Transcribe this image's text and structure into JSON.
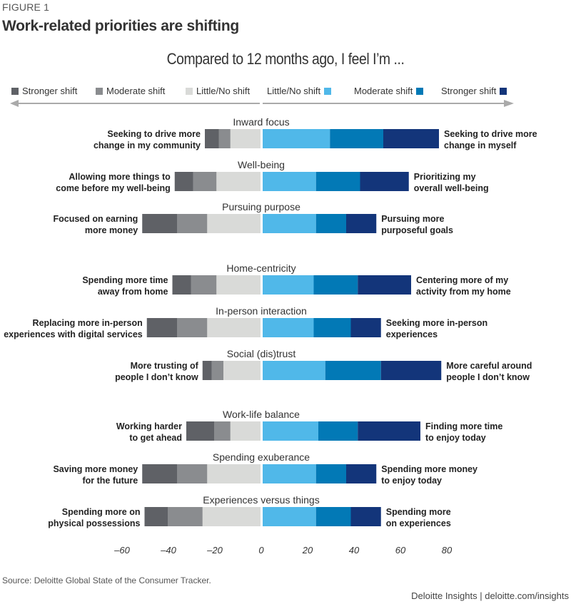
{
  "figure_label": "FIGURE 1",
  "title": "Work-related priorities are shifting",
  "source": "Source: Deloitte Global State of the Consumer Tracker.",
  "footer": "Deloitte Insights | deloitte.com/insights",
  "colors": {
    "left_stronger": "#5f6166",
    "left_moderate": "#8a8c8f",
    "left_little": "#d9dad8",
    "right_little": "#50b8e9",
    "right_moderate": "#0279b6",
    "right_stronger": "#13357a",
    "arrow": "#aaaaaa"
  },
  "legend": {
    "left": [
      "Stronger shift",
      "Moderate shift",
      "Little/No shift"
    ],
    "right": [
      "Little/No shift",
      "Moderate shift",
      "Stronger shift"
    ]
  },
  "chart_data": {
    "type": "bar",
    "orientation": "horizontal-diverging-stacked",
    "title": "Work-related priorities are shifting",
    "subtitle": "Compared to 12 months ago, I feel I’m ...",
    "xlabel": "",
    "ylabel": "",
    "xlim": [
      -60,
      80
    ],
    "xticks": [
      -60,
      -40,
      -20,
      0,
      20,
      40,
      60,
      80
    ],
    "xtick_labels": [
      "–60",
      "–40",
      "–20",
      "0",
      "20",
      "40",
      "60",
      "80"
    ],
    "grid": false,
    "legend_position": "top",
    "series": [
      {
        "name": "Stronger shift",
        "side": "left"
      },
      {
        "name": "Moderate shift",
        "side": "left"
      },
      {
        "name": "Little/No shift",
        "side": "left"
      },
      {
        "name": "Little/No shift",
        "side": "right"
      },
      {
        "name": "Moderate shift",
        "side": "right"
      },
      {
        "name": "Stronger shift",
        "side": "right"
      }
    ],
    "groups": [
      {
        "rows": [
          {
            "category": "Inward focus",
            "left_label": [
              "Seeking to drive more",
              "change in my community"
            ],
            "right_label": [
              "Seeking to drive more",
              "change in myself"
            ],
            "left": {
              "stronger": 6,
              "moderate": 5,
              "little": 13
            },
            "right": {
              "little": 29,
              "moderate": 23,
              "stronger": 24
            }
          },
          {
            "category": "Well-being",
            "left_label": [
              "Allowing more things to",
              "come before my well-being"
            ],
            "right_label": [
              "Prioritizing my",
              "overall well-being"
            ],
            "left": {
              "stronger": 8,
              "moderate": 10,
              "little": 19
            },
            "right": {
              "little": 23,
              "moderate": 19,
              "stronger": 21
            }
          },
          {
            "category": "Pursuing purpose",
            "left_label": [
              "Focused on earning",
              "more money"
            ],
            "right_label": [
              "Pursuing more",
              "purposeful goals"
            ],
            "left": {
              "stronger": 15,
              "moderate": 13,
              "little": 23
            },
            "right": {
              "little": 23,
              "moderate": 13,
              "stronger": 13
            }
          }
        ]
      },
      {
        "rows": [
          {
            "category": "Home-centricity",
            "left_label": [
              "Spending more time",
              "away from home"
            ],
            "right_label": [
              "Centering more of my",
              "activity from my home"
            ],
            "left": {
              "stronger": 8,
              "moderate": 11,
              "little": 19
            },
            "right": {
              "little": 22,
              "moderate": 19,
              "stronger": 23
            }
          },
          {
            "category": "In-person interaction",
            "left_label": [
              "Replacing more in-person",
              "experiences with digital services"
            ],
            "right_label": [
              "Seeking more in-person",
              "experiences"
            ],
            "left": {
              "stronger": 13,
              "moderate": 13,
              "little": 23
            },
            "right": {
              "little": 22,
              "moderate": 16,
              "stronger": 13
            }
          },
          {
            "category": "Social (dis)trust",
            "left_label": [
              "More trusting of",
              "people I don’t know"
            ],
            "right_label": [
              "More careful around",
              "people I don’t know"
            ],
            "left": {
              "stronger": 4,
              "moderate": 5,
              "little": 16
            },
            "right": {
              "little": 27,
              "moderate": 24,
              "stronger": 26
            }
          }
        ]
      },
      {
        "rows": [
          {
            "category": "Work-life balance",
            "left_label": [
              "Working harder",
              "to get ahead"
            ],
            "right_label": [
              "Finding more time",
              "to enjoy today"
            ],
            "left": {
              "stronger": 12,
              "moderate": 7,
              "little": 13
            },
            "right": {
              "little": 24,
              "moderate": 17,
              "stronger": 27
            }
          },
          {
            "category": "Spending exuberance",
            "left_label": [
              "Saving more money",
              "for the future"
            ],
            "right_label": [
              "Spending more money",
              "to enjoy today"
            ],
            "left": {
              "stronger": 15,
              "moderate": 13,
              "little": 23
            },
            "right": {
              "little": 23,
              "moderate": 13,
              "stronger": 13
            }
          },
          {
            "category": "Experiences versus things",
            "left_label": [
              "Spending more on",
              "physical possessions"
            ],
            "right_label": [
              "Spending more",
              "on experiences"
            ],
            "left": {
              "stronger": 10,
              "moderate": 15,
              "little": 25
            },
            "right": {
              "little": 23,
              "moderate": 15,
              "stronger": 13
            }
          }
        ]
      }
    ]
  }
}
